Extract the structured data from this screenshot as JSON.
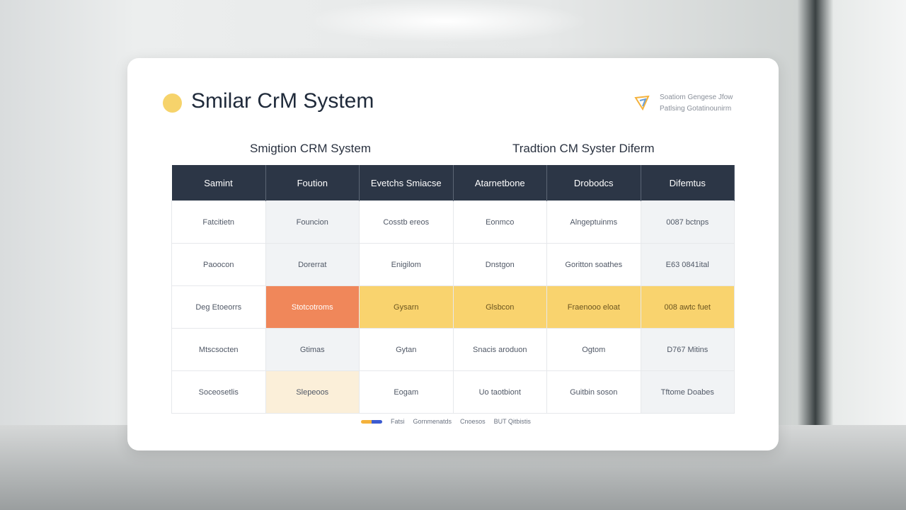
{
  "header": {
    "title": "Smilar CrM System",
    "badge": [
      "Soatiom Gengese Jfow",
      "Patlsing Gotatinounirm"
    ]
  },
  "subtitles": [
    "Smigtion CRM System",
    "Tradtion CM Syster Diferm"
  ],
  "table": {
    "headers": [
      "Samint",
      "Foution",
      "Evetchs Smiacse",
      "Atarnetbone",
      "Drobodcs",
      "Difemtus"
    ],
    "rows": [
      [
        "Fatcitietn",
        "Founcion",
        "Cosstb ereos",
        "Eonmco",
        "Alngeptuinms",
        "0087 bctnps"
      ],
      [
        "Paoocon",
        "Dorerrat",
        "Enigilom",
        "Dnstgon",
        "Goritton soathes",
        "E63 0841ital"
      ],
      [
        "Deg Etoeorrs",
        "Stotcotroms",
        "Gysarn",
        "Glsbcon",
        "Fraenooo eloat",
        "008 awtc fuet"
      ],
      [
        "Mtscsocten",
        "Gtimas",
        "Gytan",
        "Snacis aroduon",
        "Ogtom",
        "D767 Mitins"
      ],
      [
        "Soceosetlis",
        "Slepeoos",
        "Eogam",
        "Uo taotbiont",
        "Guitbin soson",
        "Tftome Doabes"
      ]
    ]
  },
  "legend": [
    "Fatsi",
    "Gornmenatds",
    "Cnoesos",
    "BUT Qitbistis"
  ]
}
